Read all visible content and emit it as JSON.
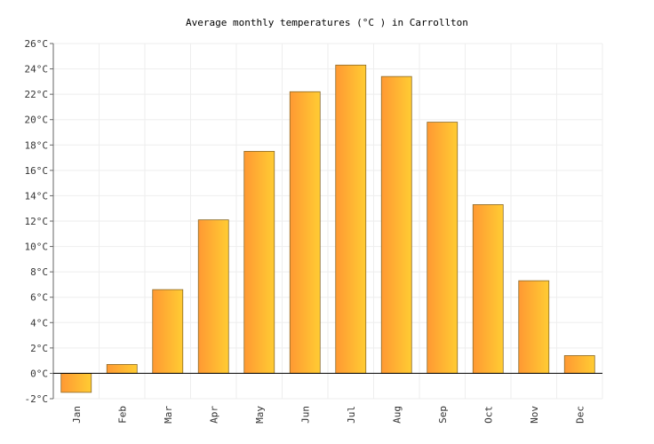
{
  "chart_data": {
    "type": "bar",
    "title": "Average monthly temperatures (°C ) in Carrollton",
    "xlabel": "",
    "ylabel": "",
    "categories": [
      "Jan",
      "Feb",
      "Mar",
      "Apr",
      "May",
      "Jun",
      "Jul",
      "Aug",
      "Sep",
      "Oct",
      "Nov",
      "Dec"
    ],
    "values": [
      -1.5,
      0.7,
      6.6,
      12.1,
      17.5,
      22.2,
      24.3,
      23.4,
      19.8,
      13.3,
      7.3,
      1.4
    ],
    "ylim": [
      -2,
      26
    ],
    "yticks": [
      -2,
      0,
      2,
      4,
      6,
      8,
      10,
      12,
      14,
      16,
      18,
      20,
      22,
      24,
      26
    ],
    "ytick_labels": [
      "-2°C",
      "0°C",
      "2°C",
      "4°C",
      "6°C",
      "8°C",
      "10°C",
      "12°C",
      "14°C",
      "16°C",
      "18°C",
      "20°C",
      "22°C",
      "24°C",
      "26°C"
    ],
    "grid": true,
    "legend": "none",
    "colors": {
      "bar_left": "#ff9933",
      "bar_right": "#ffcc33",
      "bar_border": "#8a6a2a",
      "grid": "#eeeeee",
      "axis": "#000000"
    }
  }
}
